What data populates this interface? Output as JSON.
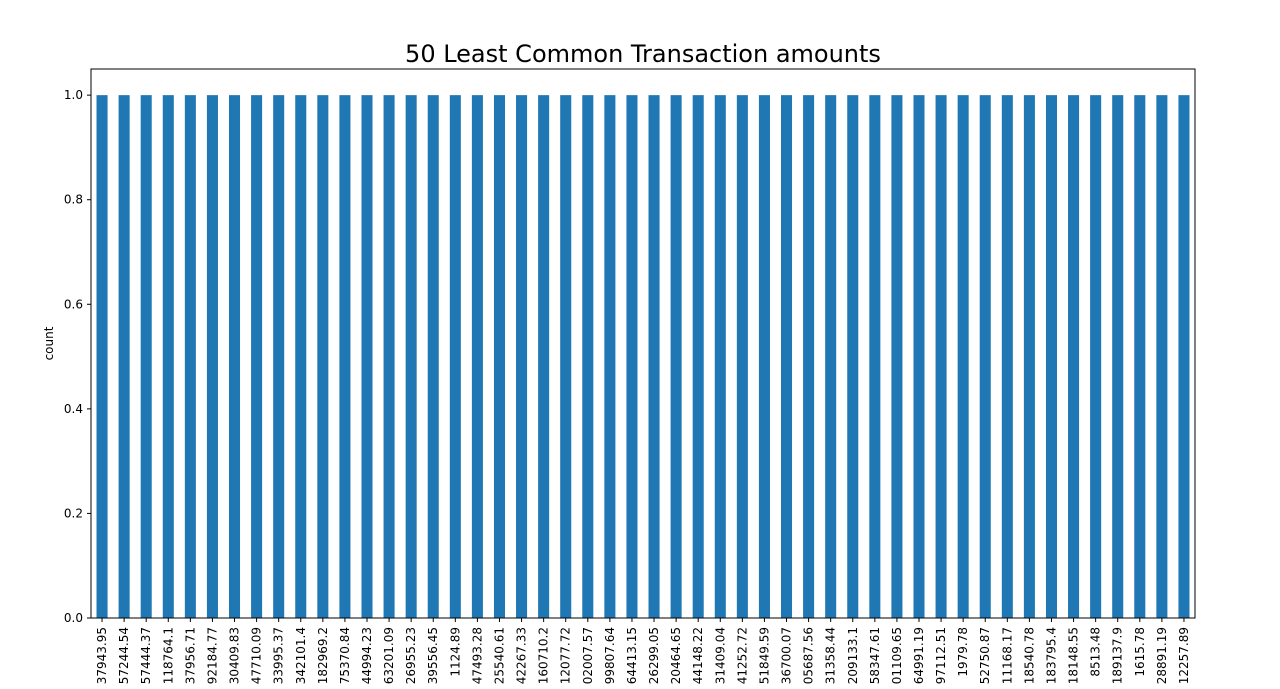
{
  "chart_data": {
    "type": "bar",
    "title": "50 Least Common Transaction amounts",
    "xlabel": "",
    "ylabel": "count",
    "ylim": [
      0,
      1.05
    ],
    "yticks": [
      "0.0",
      "0.2",
      "0.4",
      "0.6",
      "0.8",
      "1.0"
    ],
    "bar_color": "#1f77b4",
    "grid": false,
    "categories": [
      "37943.95",
      "57244.54",
      "57444.37",
      "118764.1",
      "37956.71",
      "92184.77",
      "30409.83",
      "47710.09",
      "33995.37",
      "342101.4",
      "182969.2",
      "75370.84",
      "44994.23",
      "63201.09",
      "26955.23",
      "39556.45",
      "1124.89",
      "47493.28",
      "25540.61",
      "42267.33",
      "160710.2",
      "12077.72",
      "02007.57",
      "99807.64",
      "64413.15",
      "26299.05",
      "20464.65",
      "44148.22",
      "31409.04",
      "41252.72",
      "51849.59",
      "36700.07",
      "05687.56",
      "31358.44",
      "209133.1",
      "58347.61",
      "01109.65",
      "64991.19",
      "97112.51",
      "1979.78",
      "52750.87",
      "11168.17",
      "18540.78",
      "183795.4",
      "18148.55",
      "8513.48",
      "189137.9",
      "1615.78",
      "28891.19",
      "12257.89"
    ],
    "values": [
      1,
      1,
      1,
      1,
      1,
      1,
      1,
      1,
      1,
      1,
      1,
      1,
      1,
      1,
      1,
      1,
      1,
      1,
      1,
      1,
      1,
      1,
      1,
      1,
      1,
      1,
      1,
      1,
      1,
      1,
      1,
      1,
      1,
      1,
      1,
      1,
      1,
      1,
      1,
      1,
      1,
      1,
      1,
      1,
      1,
      1,
      1,
      1,
      1,
      1
    ]
  }
}
